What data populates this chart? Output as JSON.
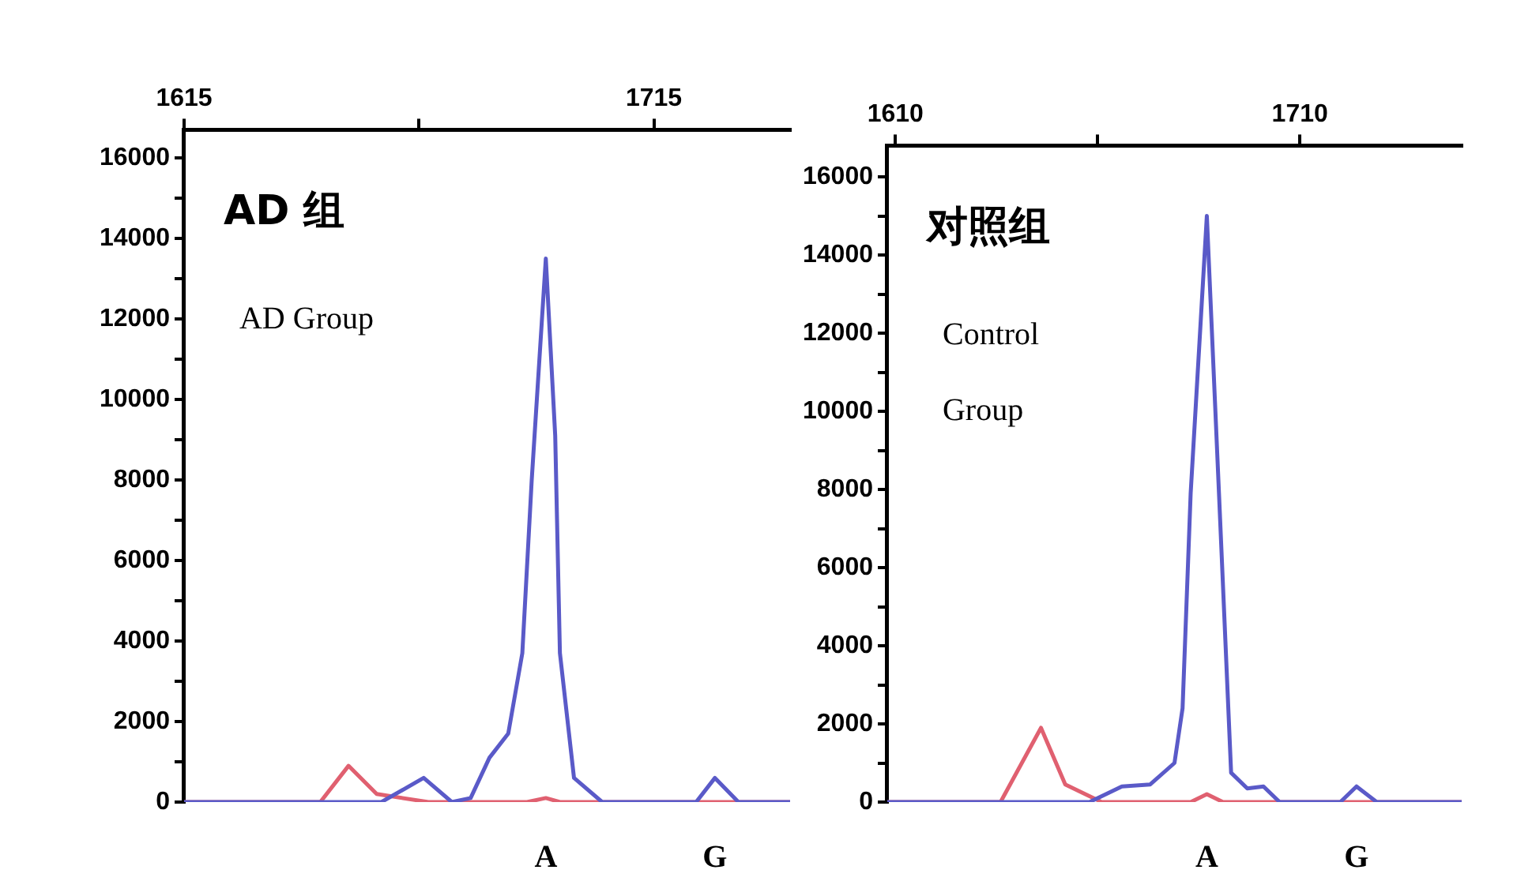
{
  "chart_data": [
    {
      "type": "line",
      "annotations": [
        "AD 组",
        "AD Group",
        "A",
        "G"
      ],
      "xlim": [
        1615,
        1744
      ],
      "xticks": [
        1615,
        {
          "value": 1665,
          "label": null
        },
        1715
      ],
      "ylim": [
        0,
        16700
      ],
      "yticks": [
        0,
        {
          "value": 1000,
          "label": null
        },
        2000,
        {
          "value": 3000,
          "label": null
        },
        4000,
        {
          "value": 5000,
          "label": null
        },
        6000,
        {
          "value": 7000,
          "label": null
        },
        8000,
        {
          "value": 9000,
          "label": null
        },
        10000,
        {
          "value": 11000,
          "label": null
        },
        12000,
        {
          "value": 13000,
          "label": null
        },
        14000,
        {
          "value": 15000,
          "label": null
        },
        16000
      ],
      "grid": false,
      "marker": "none",
      "line_style": "solid",
      "series": [
        {
          "color": "#5a5ac8",
          "x": [
            1615,
            1657,
            1666,
            1672,
            1676,
            1680,
            1684,
            1687,
            1689,
            1692,
            1694,
            1695,
            1698,
            1704,
            1724,
            1728,
            1733,
            1744
          ],
          "values": [
            0,
            0,
            600,
            0,
            100,
            1100,
            1700,
            3700,
            8000,
            13500,
            9100,
            3700,
            600,
            0,
            0,
            600,
            0,
            0
          ]
        },
        {
          "color": "#e06070",
          "x": [
            1615,
            1644,
            1650,
            1656,
            1667,
            1688,
            1692,
            1695,
            1744
          ],
          "values": [
            0,
            0,
            900,
            200,
            0,
            0,
            100,
            0,
            0
          ]
        }
      ]
    },
    {
      "type": "line",
      "annotations": [
        "对照组",
        "Control Group",
        "A",
        "G"
      ],
      "xlim": [
        1608,
        1750
      ],
      "xticks": [
        1610,
        {
          "value": 1660,
          "label": null
        },
        1710
      ],
      "ylim": [
        0,
        16800
      ],
      "yticks": [
        0,
        {
          "value": 1000,
          "label": null
        },
        2000,
        {
          "value": 3000,
          "label": null
        },
        4000,
        {
          "value": 5000,
          "label": null
        },
        6000,
        {
          "value": 7000,
          "label": null
        },
        8000,
        {
          "value": 9000,
          "label": null
        },
        10000,
        {
          "value": 11000,
          "label": null
        },
        12000,
        {
          "value": 13000,
          "label": null
        },
        14000,
        {
          "value": 15000,
          "label": null
        },
        16000
      ],
      "grid": false,
      "marker": "none",
      "line_style": "solid",
      "series": [
        {
          "color": "#5a5ac8",
          "x": [
            1608,
            1658,
            1666,
            1673,
            1679,
            1681,
            1683,
            1687,
            1690,
            1693,
            1697,
            1701,
            1705,
            1720,
            1724,
            1729,
            1750
          ],
          "values": [
            0,
            0,
            400,
            450,
            1000,
            2400,
            7900,
            15000,
            7900,
            750,
            350,
            400,
            0,
            0,
            400,
            0,
            0
          ]
        },
        {
          "color": "#e06070",
          "x": [
            1608,
            1636,
            1646,
            1652,
            1661,
            1683,
            1687,
            1691,
            1750
          ],
          "values": [
            0,
            0,
            1900,
            450,
            0,
            0,
            200,
            0,
            0
          ]
        }
      ]
    }
  ]
}
